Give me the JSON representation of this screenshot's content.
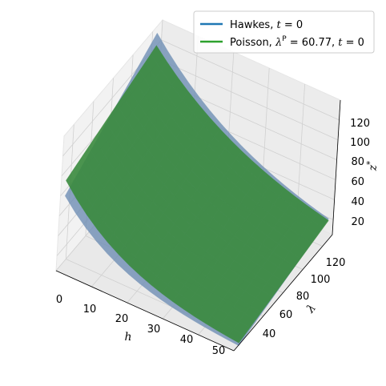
{
  "chart_data": {
    "type": "surface3d",
    "x_label": "h",
    "y_label": "λ",
    "z_label": "z",
    "z_label_sup": "*",
    "x_ticks": [
      "0",
      "10",
      "20",
      "30",
      "40",
      "50"
    ],
    "y_ticks": [
      "40",
      "60",
      "80",
      "100",
      "120"
    ],
    "z_ticks": [
      "20",
      "40",
      "60",
      "80",
      "100",
      "120"
    ],
    "x_range": [
      0,
      50
    ],
    "y_range": [
      30,
      130
    ],
    "z_range": [
      5,
      140
    ],
    "grid": true,
    "legend_position": "top-right",
    "series": [
      {
        "name_main": "Hawkes,",
        "name_var": "t",
        "name_rest": " = 0",
        "color": "#1f77b4",
        "surface_color": "#6f8fb5",
        "corners": {
          "h0_lmin": 71,
          "h0_lmax": 136,
          "h50_lmin": 3,
          "h50_lmax": 28
        }
      },
      {
        "name_main": "Poisson,",
        "name_var": "λ",
        "name_sup": "P",
        "name_rest": " = 60.77, ",
        "name_var2": "t",
        "name_rest2": " = 0",
        "color": "#2ca02c",
        "surface_color": "#3a8a3e",
        "corners": {
          "h0_lmin": 88,
          "h0_lmax": 122,
          "h50_lmin": 6,
          "h50_lmax": 26
        }
      }
    ]
  }
}
